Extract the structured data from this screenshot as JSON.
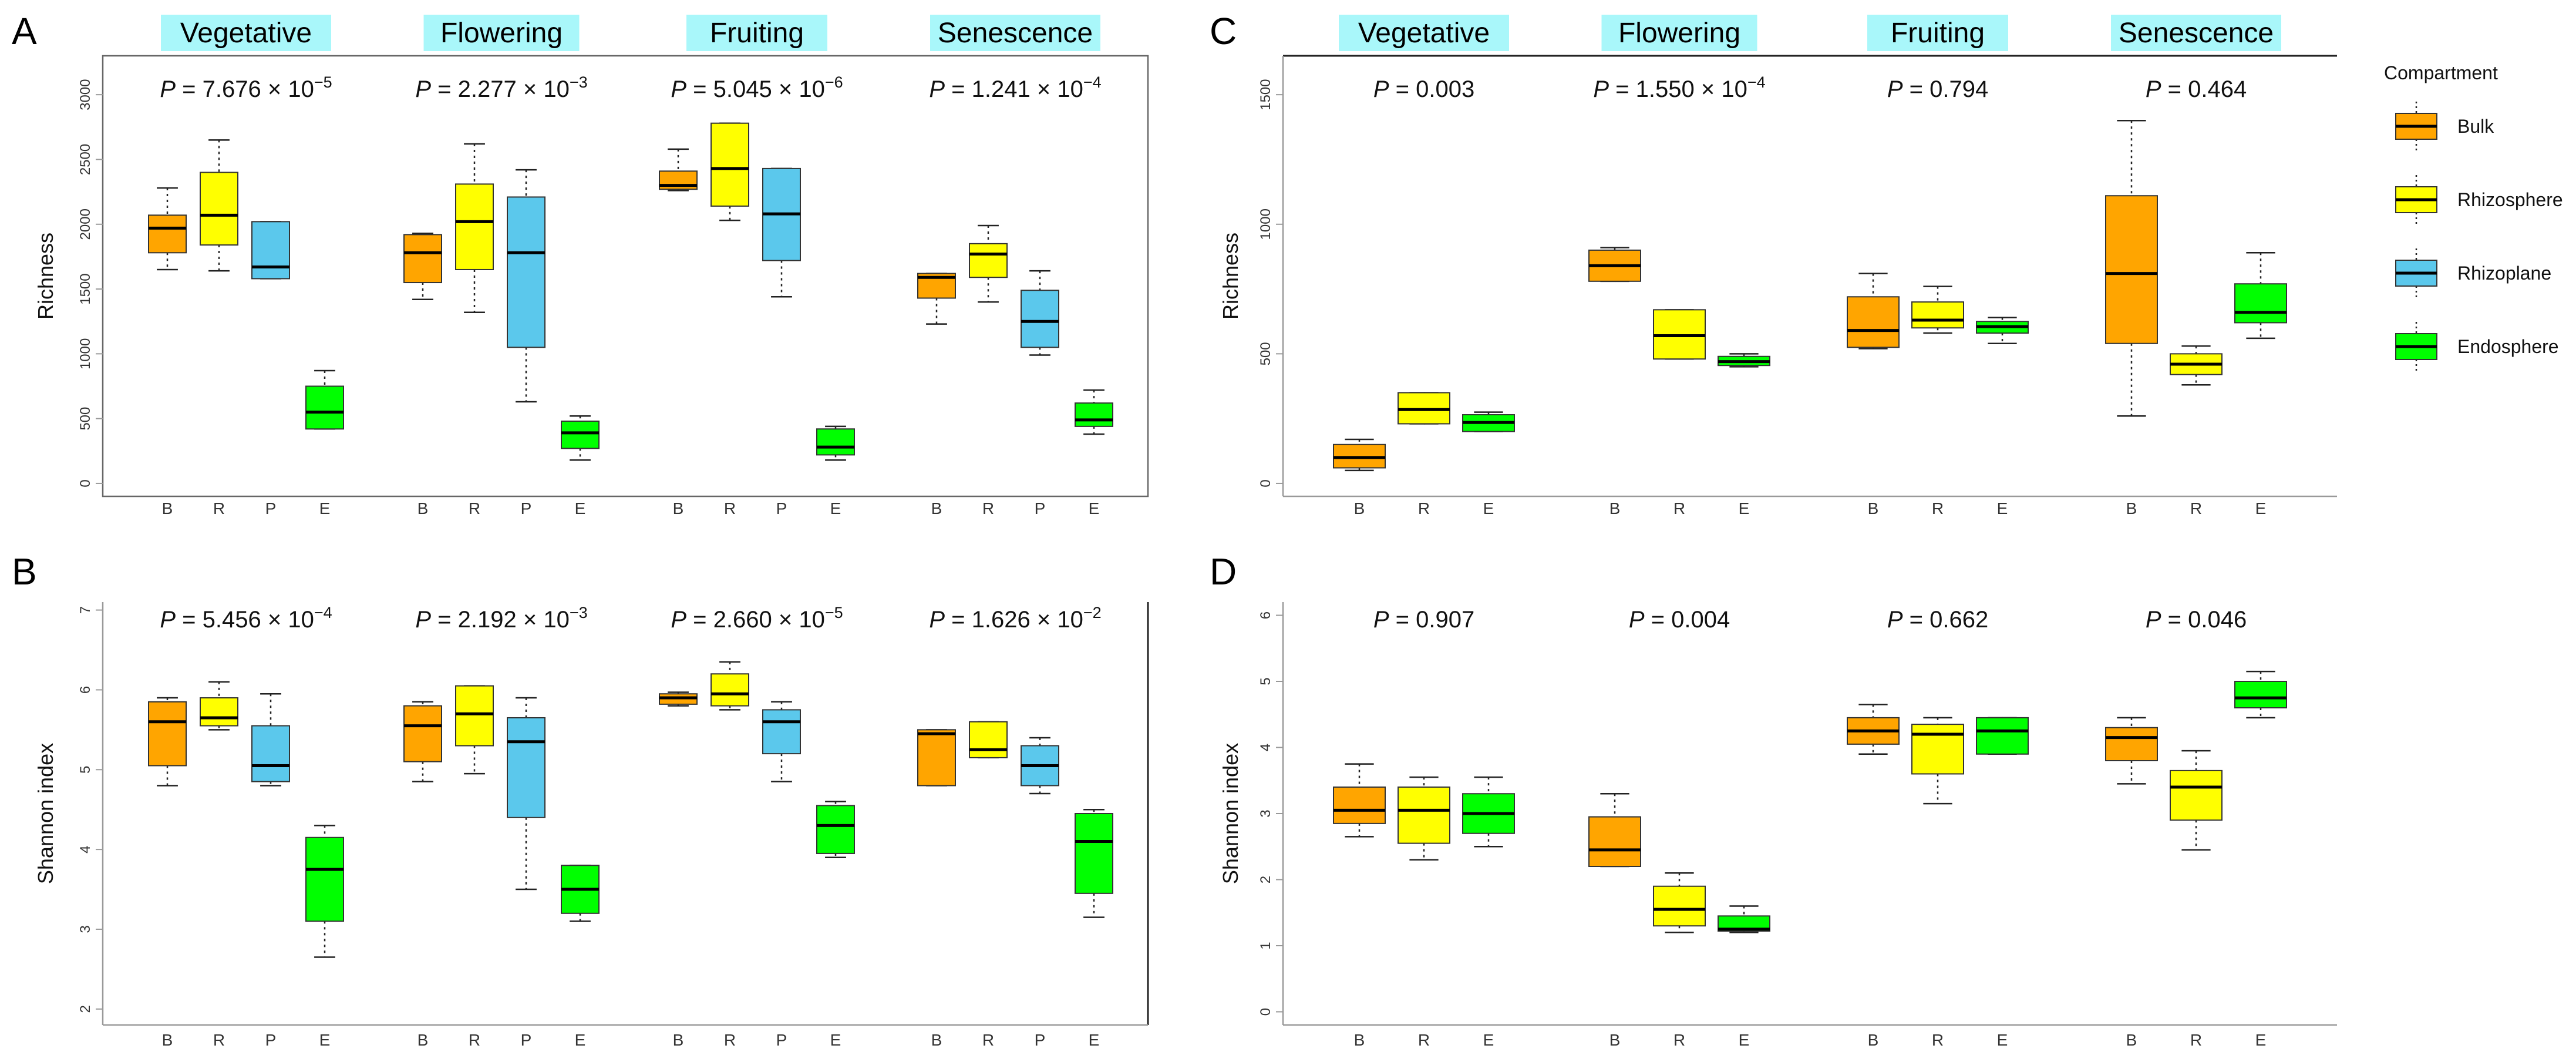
{
  "figure": {
    "legend": {
      "title": "Compartment",
      "items": [
        {
          "label": "Bulk",
          "color": "#FFA500"
        },
        {
          "label": "Rhizosphere",
          "color": "#FFFF00"
        },
        {
          "label": "Rhizoplane",
          "color": "#5BC8EC"
        },
        {
          "label": "Endosphere",
          "color": "#00FF00"
        }
      ]
    },
    "colors": {
      "B": "#FFA500",
      "R": "#FFFF00",
      "P": "#5BC8EC",
      "E": "#00FF00",
      "stage_label_bg": "#A9F7FA",
      "axis": "#888888",
      "text": "#111111"
    }
  },
  "chart_data": [
    {
      "panel": "A",
      "type": "box",
      "ylabel": "Richness",
      "ylim": [
        -100,
        3300
      ],
      "yticks": [
        "0",
        "500",
        "1000",
        "1500",
        "2000",
        "2500",
        "3000"
      ],
      "ytick_values": [
        0,
        500,
        1000,
        1500,
        2000,
        2500,
        3000
      ],
      "groups": [
        {
          "stage": "Vegetative",
          "p_value": [
            "P",
            " = 7.676 × 10",
            "−5"
          ],
          "boxes": [
            {
              "cat": "B",
              "min": 1650,
              "q1": 1780,
              "median": 1970,
              "q3": 2070,
              "max": 2280
            },
            {
              "cat": "R",
              "min": 1640,
              "q1": 1840,
              "median": 2070,
              "q3": 2400,
              "max": 2650
            },
            {
              "cat": "P",
              "min": 1580,
              "q1": 1580,
              "median": 1670,
              "q3": 2020,
              "max": 2020
            }
          ]
        },
        {
          "stage": "Flowering",
          "p_value": [
            "P",
            " = 2.277 × 10",
            "−3"
          ],
          "boxes": [
            {
              "cat": "B",
              "min": 1420,
              "q1": 1550,
              "median": 1780,
              "q3": 1920,
              "max": 1930
            },
            {
              "cat": "R",
              "min": 1320,
              "q1": 1650,
              "median": 2020,
              "q3": 2310,
              "max": 2620
            },
            {
              "cat": "P",
              "min": 630,
              "q1": 1050,
              "median": 1780,
              "q3": 2210,
              "max": 2420
            }
          ]
        },
        {
          "stage": "Fruiting",
          "p_value": [
            "P",
            " = 5.045 × 10",
            "−6"
          ],
          "boxes": [
            {
              "cat": "B",
              "min": 2260,
              "q1": 2270,
              "median": 2300,
              "q3": 2410,
              "max": 2580
            },
            {
              "cat": "R",
              "min": 2030,
              "q1": 2140,
              "median": 2430,
              "q3": 2780,
              "max": 2780
            },
            {
              "cat": "P",
              "min": 1440,
              "q1": 1720,
              "median": 2080,
              "q3": 2430,
              "max": 2430
            }
          ]
        },
        {
          "stage": "Senescence",
          "p_value": [
            "P",
            " = 1.241 × 10",
            "−4"
          ],
          "boxes": [
            {
              "cat": "B",
              "min": 1230,
              "q1": 1430,
              "median": 1590,
              "q3": 1620,
              "max": 1620
            },
            {
              "cat": "R",
              "min": 1400,
              "q1": 1590,
              "median": 1770,
              "q3": 1850,
              "max": 1990
            },
            {
              "cat": "P",
              "min": 990,
              "q1": 1050,
              "median": 1250,
              "q3": 1490,
              "max": 1640
            }
          ]
        },
        {
          "stage": "",
          "p_value": [],
          "boxes": []
        }
      ],
      "extra": [
        {
          "stage_index": 0,
          "cat": "E",
          "min": 420,
          "q1": 420,
          "median": 550,
          "q3": 750,
          "max": 870
        },
        {
          "stage_index": 1,
          "cat": "E",
          "min": 180,
          "q1": 270,
          "median": 390,
          "q3": 480,
          "max": 520
        },
        {
          "stage_index": 2,
          "cat": "E",
          "min": 180,
          "q1": 220,
          "median": 280,
          "q3": 420,
          "max": 440
        },
        {
          "stage_index": 3,
          "cat": "E",
          "min": 380,
          "q1": 440,
          "median": 490,
          "q3": 620,
          "max": 720
        }
      ],
      "xcats": [
        "B",
        "R",
        "P",
        "E"
      ]
    },
    {
      "panel": "B",
      "type": "box",
      "ylabel": "Shannon index",
      "ylim": [
        1.8,
        7.1
      ],
      "yticks": [
        "2",
        "3",
        "4",
        "5",
        "6",
        "7"
      ],
      "ytick_values": [
        2,
        3,
        4,
        5,
        6,
        7
      ],
      "groups": [
        {
          "stage": "",
          "p_value": [
            "P",
            " = 5.456 × 10",
            "−4"
          ],
          "boxes": [
            {
              "cat": "B",
              "min": 4.8,
              "q1": 5.05,
              "median": 5.6,
              "q3": 5.85,
              "max": 5.9
            },
            {
              "cat": "R",
              "min": 5.5,
              "q1": 5.55,
              "median": 5.65,
              "q3": 5.9,
              "max": 6.1
            },
            {
              "cat": "P",
              "min": 4.8,
              "q1": 4.85,
              "median": 5.05,
              "q3": 5.55,
              "max": 5.95
            },
            {
              "cat": "E",
              "min": 2.65,
              "q1": 3.1,
              "median": 3.75,
              "q3": 4.15,
              "max": 4.3
            }
          ]
        },
        {
          "stage": "",
          "p_value": [
            "P",
            " = 2.192 × 10",
            "−3"
          ],
          "boxes": [
            {
              "cat": "B",
              "min": 4.85,
              "q1": 5.1,
              "median": 5.55,
              "q3": 5.8,
              "max": 5.85
            },
            {
              "cat": "R",
              "min": 4.95,
              "q1": 5.3,
              "median": 5.7,
              "q3": 6.05,
              "max": 6.05
            },
            {
              "cat": "P",
              "min": 3.5,
              "q1": 4.4,
              "median": 5.35,
              "q3": 5.65,
              "max": 5.9
            },
            {
              "cat": "E",
              "min": 3.1,
              "q1": 3.2,
              "median": 3.5,
              "q3": 3.8,
              "max": 3.8
            }
          ]
        },
        {
          "stage": "",
          "p_value": [
            "P",
            " = 2.660 × 10",
            "−5"
          ],
          "boxes": [
            {
              "cat": "B",
              "min": 5.8,
              "q1": 5.82,
              "median": 5.9,
              "q3": 5.95,
              "max": 5.97
            },
            {
              "cat": "R",
              "min": 5.75,
              "q1": 5.8,
              "median": 5.95,
              "q3": 6.2,
              "max": 6.35
            },
            {
              "cat": "P",
              "min": 4.85,
              "q1": 5.2,
              "median": 5.6,
              "q3": 5.75,
              "max": 5.85
            },
            {
              "cat": "E",
              "min": 3.9,
              "q1": 3.95,
              "median": 4.3,
              "q3": 4.55,
              "max": 4.6
            }
          ]
        },
        {
          "stage": "",
          "p_value": [
            "P",
            " = 1.626 × 10",
            "−2"
          ],
          "boxes": [
            {
              "cat": "B",
              "min": 4.8,
              "q1": 4.8,
              "median": 5.45,
              "q3": 5.5,
              "max": 5.5
            },
            {
              "cat": "R",
              "min": 5.15,
              "q1": 5.15,
              "median": 5.25,
              "q3": 5.6,
              "max": 5.6
            },
            {
              "cat": "P",
              "min": 4.7,
              "q1": 4.8,
              "median": 5.05,
              "q3": 5.3,
              "max": 5.4
            },
            {
              "cat": "E",
              "min": 3.15,
              "q1": 3.45,
              "median": 4.1,
              "q3": 4.45,
              "max": 4.5
            }
          ]
        }
      ],
      "xcats": [
        "B",
        "R",
        "P",
        "E"
      ]
    },
    {
      "panel": "C",
      "type": "box",
      "ylabel": "Richness",
      "ylim": [
        -50,
        1650
      ],
      "yticks": [
        "0",
        "500",
        "1000",
        "1500"
      ],
      "ytick_values": [
        0,
        500,
        1000,
        1500
      ],
      "groups": [
        {
          "stage": "Vegetative",
          "p_value": [
            "P",
            " = 0.003",
            ""
          ],
          "boxes": [
            {
              "cat": "B",
              "min": 50,
              "q1": 60,
              "median": 100,
              "q3": 150,
              "max": 170
            },
            {
              "cat": "R",
              "min": 230,
              "q1": 230,
              "median": 285,
              "q3": 350,
              "max": 350
            },
            {
              "cat": "E",
              "min": 200,
              "q1": 200,
              "median": 235,
              "q3": 265,
              "max": 275
            }
          ]
        },
        {
          "stage": "Flowering",
          "p_value": [
            "P",
            " = 1.550 × 10",
            "−4"
          ],
          "boxes": [
            {
              "cat": "B",
              "min": 780,
              "q1": 780,
              "median": 840,
              "q3": 900,
              "max": 910
            },
            {
              "cat": "R",
              "min": 480,
              "q1": 480,
              "median": 570,
              "q3": 670,
              "max": 670
            },
            {
              "cat": "E",
              "min": 450,
              "q1": 455,
              "median": 470,
              "q3": 490,
              "max": 500
            }
          ]
        },
        {
          "stage": "Fruiting",
          "p_value": [
            "P",
            " = 0.794",
            ""
          ],
          "boxes": [
            {
              "cat": "B",
              "min": 520,
              "q1": 525,
              "median": 590,
              "q3": 720,
              "max": 810
            },
            {
              "cat": "R",
              "min": 580,
              "q1": 600,
              "median": 630,
              "q3": 700,
              "max": 760
            },
            {
              "cat": "E",
              "min": 540,
              "q1": 580,
              "median": 605,
              "q3": 625,
              "max": 640
            }
          ]
        },
        {
          "stage": "Senescence",
          "p_value": [
            "P",
            " = 0.464",
            ""
          ],
          "boxes": [
            {
              "cat": "B",
              "min": 260,
              "q1": 540,
              "median": 810,
              "q3": 1110,
              "max": 1400
            },
            {
              "cat": "R",
              "min": 380,
              "q1": 420,
              "median": 460,
              "q3": 500,
              "max": 530
            },
            {
              "cat": "E",
              "min": 560,
              "q1": 620,
              "median": 660,
              "q3": 770,
              "max": 890
            }
          ]
        }
      ],
      "xcats": [
        "B",
        "R",
        "E"
      ]
    },
    {
      "panel": "D",
      "type": "box",
      "ylabel": "Shannon index",
      "ylim": [
        -0.2,
        6.2
      ],
      "yticks": [
        "0",
        "1",
        "2",
        "3",
        "4",
        "5",
        "6"
      ],
      "ytick_values": [
        0,
        1,
        2,
        3,
        4,
        5,
        6
      ],
      "groups": [
        {
          "stage": "",
          "p_value": [
            "P",
            " = 0.907",
            ""
          ],
          "boxes": [
            {
              "cat": "B",
              "min": 2.65,
              "q1": 2.85,
              "median": 3.05,
              "q3": 3.4,
              "max": 3.75
            },
            {
              "cat": "R",
              "min": 2.3,
              "q1": 2.55,
              "median": 3.05,
              "q3": 3.4,
              "max": 3.55
            },
            {
              "cat": "E",
              "min": 2.5,
              "q1": 2.7,
              "median": 3.0,
              "q3": 3.3,
              "max": 3.55
            }
          ]
        },
        {
          "stage": "",
          "p_value": [
            "P",
            " = 0.004",
            ""
          ],
          "boxes": [
            {
              "cat": "B",
              "min": 2.2,
              "q1": 2.2,
              "median": 2.45,
              "q3": 2.95,
              "max": 3.3
            },
            {
              "cat": "R",
              "min": 1.2,
              "q1": 1.3,
              "median": 1.55,
              "q3": 1.9,
              "max": 2.1
            },
            {
              "cat": "E",
              "min": 1.2,
              "q1": 1.22,
              "median": 1.25,
              "q3": 1.45,
              "max": 1.6
            }
          ]
        },
        {
          "stage": "",
          "p_value": [
            "P",
            " = 0.662",
            ""
          ],
          "boxes": [
            {
              "cat": "B",
              "min": 3.9,
              "q1": 4.05,
              "median": 4.25,
              "q3": 4.45,
              "max": 4.65
            },
            {
              "cat": "R",
              "min": 3.15,
              "q1": 3.6,
              "median": 4.2,
              "q3": 4.35,
              "max": 4.45
            },
            {
              "cat": "E",
              "min": 3.9,
              "q1": 3.9,
              "median": 4.25,
              "q3": 4.45,
              "max": 4.45
            }
          ]
        },
        {
          "stage": "",
          "p_value": [
            "P",
            " = 0.046",
            ""
          ],
          "boxes": [
            {
              "cat": "B",
              "min": 3.45,
              "q1": 3.8,
              "median": 4.15,
              "q3": 4.3,
              "max": 4.45
            },
            {
              "cat": "R",
              "min": 2.45,
              "q1": 2.9,
              "median": 3.4,
              "q3": 3.65,
              "max": 3.95
            },
            {
              "cat": "E",
              "min": 4.45,
              "q1": 4.6,
              "median": 4.75,
              "q3": 5.0,
              "max": 5.15
            }
          ]
        }
      ],
      "xcats": [
        "B",
        "R",
        "E"
      ]
    }
  ]
}
